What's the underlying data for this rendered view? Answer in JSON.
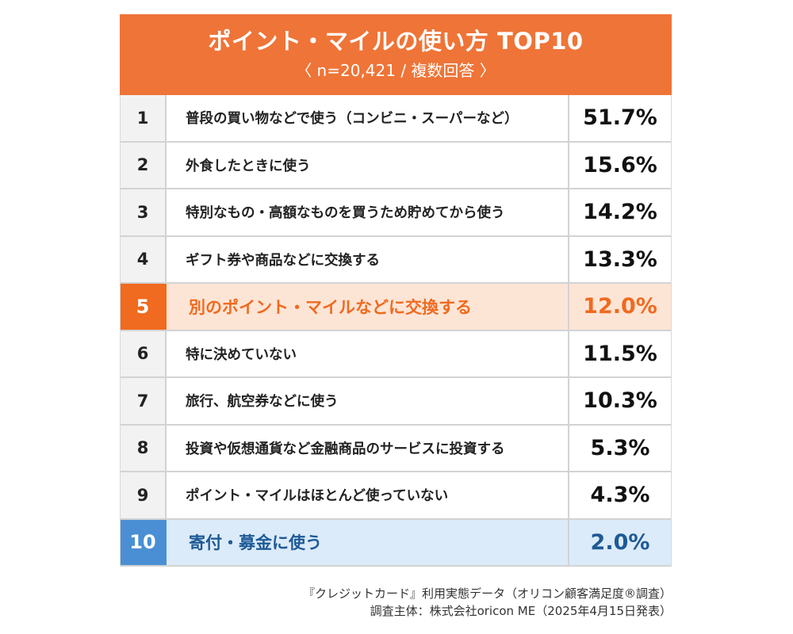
{
  "chart_data": {
    "type": "table",
    "title": "ポイント・マイルの使い方 TOP10",
    "subtitle": "〈 n=20,421 / 複数回答 〉",
    "highlight_colors": {
      "orange": "#f06a1f",
      "blue": "#4a8fd4",
      "header": "#ef7437"
    },
    "rows": [
      {
        "rank": "1",
        "label": "普段の買い物などで使う（コンビニ・スーパーなど）",
        "value": 51.7,
        "display": "51.7%",
        "highlight": ""
      },
      {
        "rank": "2",
        "label": "外食したときに使う",
        "value": 15.6,
        "display": "15.6%",
        "highlight": ""
      },
      {
        "rank": "3",
        "label": "特別なもの・高額なものを買うため貯めてから使う",
        "value": 14.2,
        "display": "14.2%",
        "highlight": ""
      },
      {
        "rank": "4",
        "label": "ギフト券や商品などに交換する",
        "value": 13.3,
        "display": "13.3%",
        "highlight": ""
      },
      {
        "rank": "5",
        "label": "別のポイント・マイルなどに交換する",
        "value": 12.0,
        "display": "12.0%",
        "highlight": "orange"
      },
      {
        "rank": "6",
        "label": "特に決めていない",
        "value": 11.5,
        "display": "11.5%",
        "highlight": ""
      },
      {
        "rank": "7",
        "label": "旅行、航空券などに使う",
        "value": 10.3,
        "display": "10.3%",
        "highlight": ""
      },
      {
        "rank": "8",
        "label": "投資や仮想通貨など金融商品のサービスに投資する",
        "value": 5.3,
        "display": "5.3%",
        "highlight": ""
      },
      {
        "rank": "9",
        "label": "ポイント・マイルはほとんど使っていない",
        "value": 4.3,
        "display": "4.3%",
        "highlight": ""
      },
      {
        "rank": "10",
        "label": "寄付・募金に使う",
        "value": 2.0,
        "display": "2.0%",
        "highlight": "blue"
      }
    ]
  },
  "source": {
    "line1": "『クレジットカード』利用実態データ（オリコン顧客満足度®調査）",
    "line2": "調査主体：株式会社oricon ME（2025年4月15日発表）"
  }
}
